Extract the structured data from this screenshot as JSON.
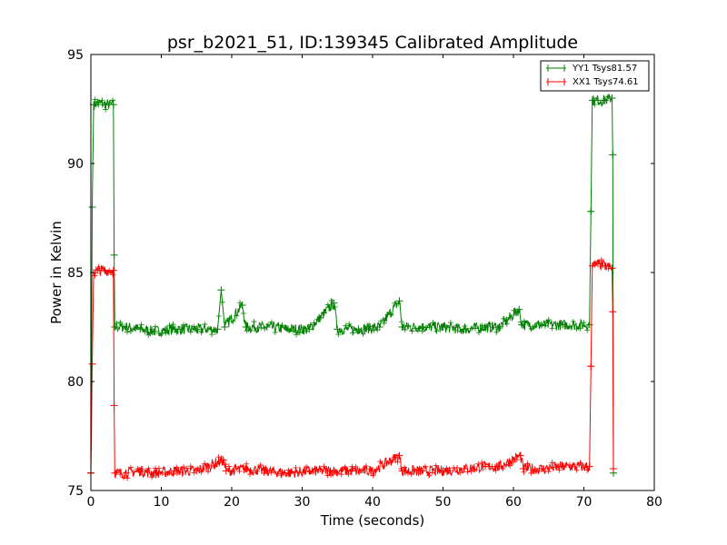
{
  "chart_data": {
    "type": "line",
    "title": "psr_b2021_51, ID:139345 Calibrated Amplitude",
    "xlabel": "Time (seconds)",
    "ylabel": "Power in Kelvin",
    "xlim": [
      0,
      80
    ],
    "ylim": [
      75,
      95
    ],
    "xticks": [
      "0",
      "10",
      "20",
      "30",
      "40",
      "50",
      "60",
      "70",
      "80"
    ],
    "yticks": [
      "75",
      "80",
      "85",
      "90",
      "95"
    ],
    "grid": false,
    "legend_position": "top-right",
    "noise_amplitude": 0.25,
    "series": [
      {
        "name": "YY1 Tsys81.57",
        "color": "#008000",
        "points": [
          [
            0,
            75.8
          ],
          [
            0.2,
            88.0
          ],
          [
            0.4,
            92.7
          ],
          [
            1,
            92.8
          ],
          [
            2,
            92.7
          ],
          [
            3.2,
            92.7
          ],
          [
            3.3,
            85.8
          ],
          [
            3.4,
            82.5
          ],
          [
            5,
            82.5
          ],
          [
            7,
            82.4
          ],
          [
            9,
            82.3
          ],
          [
            12,
            82.4
          ],
          [
            15,
            82.4
          ],
          [
            18,
            82.4
          ],
          [
            18.5,
            84.2
          ],
          [
            19,
            82.5
          ],
          [
            21.5,
            83.5
          ],
          [
            22,
            82.5
          ],
          [
            25,
            82.5
          ],
          [
            28,
            82.4
          ],
          [
            31,
            82.4
          ],
          [
            34.5,
            83.6
          ],
          [
            35,
            82.4
          ],
          [
            38,
            82.4
          ],
          [
            41,
            82.5
          ],
          [
            43.8,
            83.7
          ],
          [
            44.2,
            82.5
          ],
          [
            47,
            82.5
          ],
          [
            50,
            82.5
          ],
          [
            53,
            82.4
          ],
          [
            56,
            82.5
          ],
          [
            58,
            82.5
          ],
          [
            60.8,
            83.3
          ],
          [
            61.2,
            82.6
          ],
          [
            64,
            82.6
          ],
          [
            67,
            82.6
          ],
          [
            70.8,
            82.6
          ],
          [
            71,
            87.8
          ],
          [
            71.2,
            92.9
          ],
          [
            72,
            92.9
          ],
          [
            73,
            92.9
          ],
          [
            74,
            93.0
          ],
          [
            74.1,
            90.4
          ],
          [
            74.2,
            75.8
          ]
        ]
      },
      {
        "name": "XX1 Tsys74.61",
        "color": "#ff0000",
        "points": [
          [
            0,
            75.8
          ],
          [
            0.2,
            80.8
          ],
          [
            0.4,
            85.0
          ],
          [
            1,
            85.1
          ],
          [
            2,
            85.1
          ],
          [
            3.2,
            85.1
          ],
          [
            3.3,
            78.9
          ],
          [
            3.4,
            75.8
          ],
          [
            5,
            75.8
          ],
          [
            7,
            75.9
          ],
          [
            9,
            75.8
          ],
          [
            12,
            75.9
          ],
          [
            15,
            75.9
          ],
          [
            18.8,
            76.4
          ],
          [
            19.2,
            75.9
          ],
          [
            22,
            76.0
          ],
          [
            25,
            75.9
          ],
          [
            28,
            75.8
          ],
          [
            31,
            75.9
          ],
          [
            34,
            75.9
          ],
          [
            37,
            75.9
          ],
          [
            40,
            75.9
          ],
          [
            43.8,
            76.6
          ],
          [
            44.2,
            75.9
          ],
          [
            47,
            75.9
          ],
          [
            50,
            75.9
          ],
          [
            53,
            76.0
          ],
          [
            56,
            76.1
          ],
          [
            58,
            76.1
          ],
          [
            61,
            76.6
          ],
          [
            61.4,
            76.0
          ],
          [
            64,
            76.0
          ],
          [
            67,
            76.1
          ],
          [
            70.8,
            76.1
          ],
          [
            71,
            80.7
          ],
          [
            71.2,
            85.3
          ],
          [
            72,
            85.4
          ],
          [
            73,
            85.3
          ],
          [
            74,
            85.2
          ],
          [
            74.1,
            83.2
          ],
          [
            74.2,
            76.0
          ]
        ]
      }
    ]
  }
}
